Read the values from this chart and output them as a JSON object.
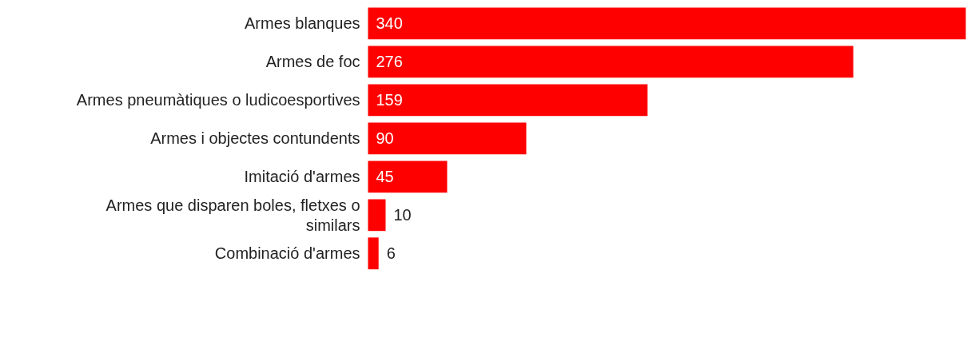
{
  "chart_data": {
    "type": "bar",
    "orientation": "horizontal",
    "data_labels": true,
    "categories": [
      "Armes blanques",
      "Armes de foc",
      "Armes pneumàtiques o ludicoesportives",
      "Armes i objectes contundents",
      "Imitació d'armes",
      "Armes que disparen boles, fletxes o similars",
      "Combinació d'armes"
    ],
    "values": [
      340,
      276,
      159,
      90,
      45,
      10,
      6
    ],
    "color": "#ff0000"
  }
}
